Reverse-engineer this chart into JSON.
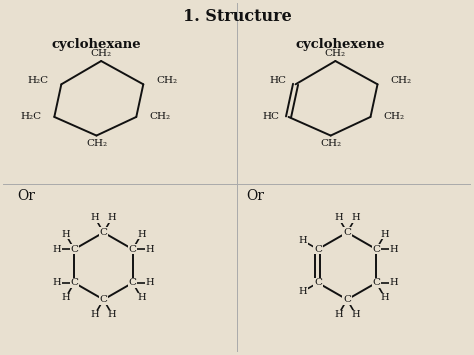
{
  "title": "1. Structure",
  "bg_color": "#e8e0d0",
  "text_color": "#111111",
  "label_cyclohexane": "cyclohexane",
  "label_cyclohexene": "cyclohexene",
  "or_label": "Or",
  "divider_color": "#aaaaaa"
}
